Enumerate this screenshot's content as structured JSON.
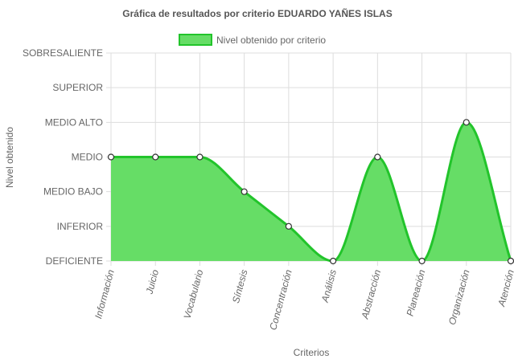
{
  "chart_data": {
    "type": "area",
    "title": "Gráfica de resultados por criterio EDUARDO YAÑES ISLAS",
    "xlabel": "Criterios",
    "ylabel": "Nivel obtenido",
    "categories": [
      "Información",
      "Juicio",
      "Vocabulario",
      "Síntesis",
      "Concentración",
      "Análisis",
      "Abstracción",
      "Planeación",
      "Organización",
      "Atención"
    ],
    "levels": [
      "DEFICIENTE",
      "INFERIOR",
      "MEDIO BAJO",
      "MEDIO",
      "MEDIO ALTO",
      "SUPERIOR",
      "SOBRESALIENTE"
    ],
    "ylim": [
      0,
      6
    ],
    "series": [
      {
        "name": "Nivel obtenido por criterio",
        "values": [
          3,
          3,
          3,
          2,
          1,
          0,
          3,
          0,
          4,
          0
        ],
        "color": "#22c42b",
        "fill": "#66dd66"
      }
    ],
    "legend_position": "top",
    "grid": true
  }
}
